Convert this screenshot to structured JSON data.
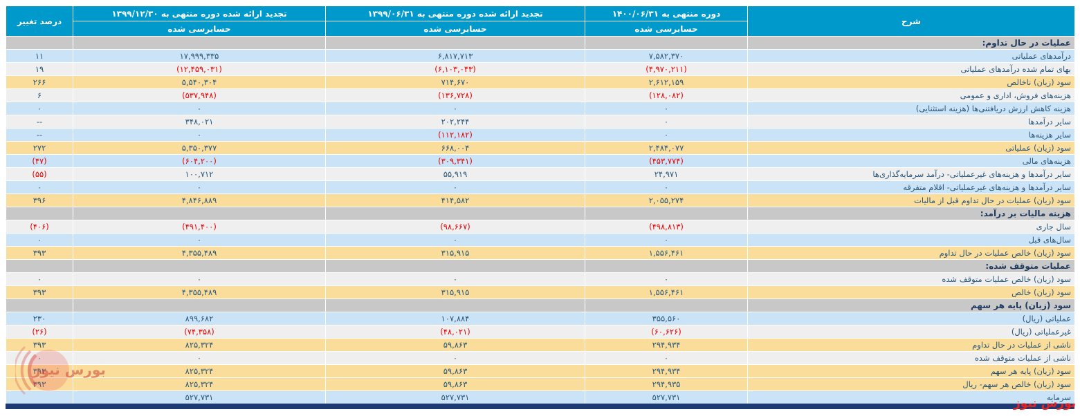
{
  "table": {
    "headers": {
      "desc": "شرح",
      "period_1400": "دوره منتهی به ۱۴۰۰/۰۶/۳۱",
      "period_1399_06": "تجدید ارائه شده دوره منتهی به ۱۳۹۹/۰۶/۳۱",
      "period_1399_12": "تجدید ارائه شده دوره منتهی به ۱۳۹۹/۱۲/۳۰",
      "audited": "حسابرسی شده",
      "change": "درصد تغییر"
    },
    "rows": [
      {
        "type": "section",
        "label": "عملیات در حال تداوم:",
        "v1400": "",
        "v1399_06": "",
        "v1399_12": "",
        "change": ""
      },
      {
        "type": "blue",
        "label": "درآمدهای عملیاتی",
        "v1400": "۷,۵۸۲,۳۷۰",
        "v1399_06": "۶,۸۱۷,۷۱۳",
        "v1399_12": "۱۷,۹۹۹,۳۳۵",
        "change": "۱۱"
      },
      {
        "type": "white",
        "label": "بهای تمام شده درآمدهای عملیاتی",
        "v1400": "(۴,۹۷۰,۲۱۱)",
        "v1399_06": "(۶,۱۰۳,۰۴۳)",
        "v1399_12": "(۱۲,۴۵۹,۰۳۱)",
        "change": "۱۹"
      },
      {
        "type": "yellow",
        "label": "سود (زیان) ناخالص",
        "v1400": "۲,۶۱۲,۱۵۹",
        "v1399_06": "۷۱۴,۶۷۰",
        "v1399_12": "۵,۵۴۰,۳۰۴",
        "change": "۲۶۶"
      },
      {
        "type": "white",
        "label": "هزینه‌های فروش، اداری و عمومی",
        "v1400": "(۱۲۸,۰۸۲)",
        "v1399_06": "(۱۳۶,۷۲۸)",
        "v1399_12": "(۵۳۷,۹۴۸)",
        "change": "۶"
      },
      {
        "type": "blue",
        "label": "هزینه کاهش ارزش دریافتنی‌ها (هزینه استثنایی)",
        "v1400": "۰",
        "v1399_06": "۰",
        "v1399_12": "۰",
        "change": "۰"
      },
      {
        "type": "white",
        "label": "سایر درآمدها",
        "v1400": "۰",
        "v1399_06": "۲۰۲,۲۴۴",
        "v1399_12": "۳۴۸,۰۲۱",
        "change": "--"
      },
      {
        "type": "blue",
        "label": "سایر هزینه‌ها",
        "v1400": "۰",
        "v1399_06": "(۱۱۲,۱۸۲)",
        "v1399_12": "۰",
        "change": "--"
      },
      {
        "type": "yellow",
        "label": "سود (زیان) عملیاتی",
        "v1400": "۲,۴۸۴,۰۷۷",
        "v1399_06": "۶۶۸,۰۰۴",
        "v1399_12": "۵,۳۵۰,۳۷۷",
        "change": "۲۷۲"
      },
      {
        "type": "blue",
        "label": "هزینه‌های مالی",
        "v1400": "(۴۵۳,۷۷۴)",
        "v1399_06": "(۳۰۹,۳۴۱)",
        "v1399_12": "(۶۰۴,۲۰۰)",
        "change": "(۴۷)"
      },
      {
        "type": "white",
        "label": "سایر درآمدها و هزینه‌های غیرعملیاتی- درآمد سرمایه‌گذاری‌ها",
        "v1400": "۲۴,۹۷۱",
        "v1399_06": "۵۵,۹۱۹",
        "v1399_12": "۱۰۰,۷۱۲",
        "change": "(۵۵)"
      },
      {
        "type": "blue",
        "label": "سایر درآمدها و هزینه‌های غیرعملیاتی- اقلام متفرقه",
        "v1400": "۰",
        "v1399_06": "۰",
        "v1399_12": "۰",
        "change": "۰"
      },
      {
        "type": "yellow",
        "label": "سود (زیان) عملیات در حال تداوم قبل از مالیات",
        "v1400": "۲,۰۵۵,۲۷۴",
        "v1399_06": "۴۱۴,۵۸۲",
        "v1399_12": "۴,۸۴۶,۸۸۹",
        "change": "۳۹۶"
      },
      {
        "type": "section",
        "label": "هزینه مالیات بر درآمد:",
        "v1400": "",
        "v1399_06": "",
        "v1399_12": "",
        "change": ""
      },
      {
        "type": "white",
        "label": "سال جاری",
        "v1400": "(۴۹۸,۸۱۳)",
        "v1399_06": "(۹۸,۶۶۷)",
        "v1399_12": "(۴۹۱,۴۰۰)",
        "change": "(۴۰۶)"
      },
      {
        "type": "blue",
        "label": "سال‌های قبل",
        "v1400": "۰",
        "v1399_06": "۰",
        "v1399_12": "۰",
        "change": "۰"
      },
      {
        "type": "yellow",
        "label": "سود (زیان) خالص عملیات در حال تداوم",
        "v1400": "۱,۵۵۶,۴۶۱",
        "v1399_06": "۳۱۵,۹۱۵",
        "v1399_12": "۴,۳۵۵,۴۸۹",
        "change": "۳۹۳"
      },
      {
        "type": "section",
        "label": "عملیات متوقف شده:",
        "v1400": "",
        "v1399_06": "",
        "v1399_12": "",
        "change": ""
      },
      {
        "type": "white",
        "label": "سود (زیان) خالص عملیات متوقف شده",
        "v1400": "۰",
        "v1399_06": "۰",
        "v1399_12": "۰",
        "change": "۰"
      },
      {
        "type": "yellow",
        "label": "سود (زیان) خالص",
        "v1400": "۱,۵۵۶,۴۶۱",
        "v1399_06": "۳۱۵,۹۱۵",
        "v1399_12": "۴,۳۵۵,۴۸۹",
        "change": "۳۹۳"
      },
      {
        "type": "section",
        "label": "سود (زیان) پایه هر سهم",
        "v1400": "",
        "v1399_06": "",
        "v1399_12": "",
        "change": ""
      },
      {
        "type": "blue",
        "label": "عملیاتی (ریال)",
        "v1400": "۳۵۵,۵۶۰",
        "v1399_06": "۱۰۷,۸۸۴",
        "v1399_12": "۸۹۹,۶۸۲",
        "change": "۲۳۰"
      },
      {
        "type": "white",
        "label": "غیرعملیاتی (ریال)",
        "v1400": "(۶۰,۶۲۶)",
        "v1399_06": "(۴۸,۰۲۱)",
        "v1399_12": "(۷۴,۳۵۸)",
        "change": "(۲۶)"
      },
      {
        "type": "yellow",
        "label": "ناشی از عملیات در حال تداوم",
        "v1400": "۲۹۴,۹۳۴",
        "v1399_06": "۵۹,۸۶۳",
        "v1399_12": "۸۲۵,۳۲۴",
        "change": "۳۹۳"
      },
      {
        "type": "white",
        "label": "ناشی از عملیات متوقف شده",
        "v1400": "۰",
        "v1399_06": "۰",
        "v1399_12": "۰",
        "change": "۰"
      },
      {
        "type": "yellow",
        "label": "سود (زیان) پایه هر سهم",
        "v1400": "۲۹۴,۹۳۴",
        "v1399_06": "۵۹,۸۶۳",
        "v1399_12": "۸۲۵,۳۲۴",
        "change": "۳۹۳"
      },
      {
        "type": "yellow",
        "label": "سود (زیان) خالص هر سهم- ریال",
        "v1400": "۲۹۴,۹۳۵",
        "v1399_06": "۵۹,۸۶۳",
        "v1399_12": "۸۲۵,۳۲۴",
        "change": "۳۹۳"
      },
      {
        "type": "blue",
        "label": "سرمایه",
        "v1400": "۵۲۷,۷۳۱",
        "v1399_06": "۵۲۷,۷۳۱",
        "v1399_12": "۵۲۷,۷۳۱",
        "change": ""
      }
    ]
  },
  "watermark": {
    "logo_text": "بورس نیوز",
    "credit_text": "بورس نیوز"
  },
  "colors": {
    "header_bg": "#0099cc",
    "section_bg": "#c8c8c8",
    "blue_row": "#cbe3f6",
    "white_row": "#efefef",
    "yellow_row": "#fbdd9b",
    "text": "#28567a",
    "negative": "#e60000",
    "footer_bar": "#1e3a72",
    "watermark_red": "#e02424"
  }
}
